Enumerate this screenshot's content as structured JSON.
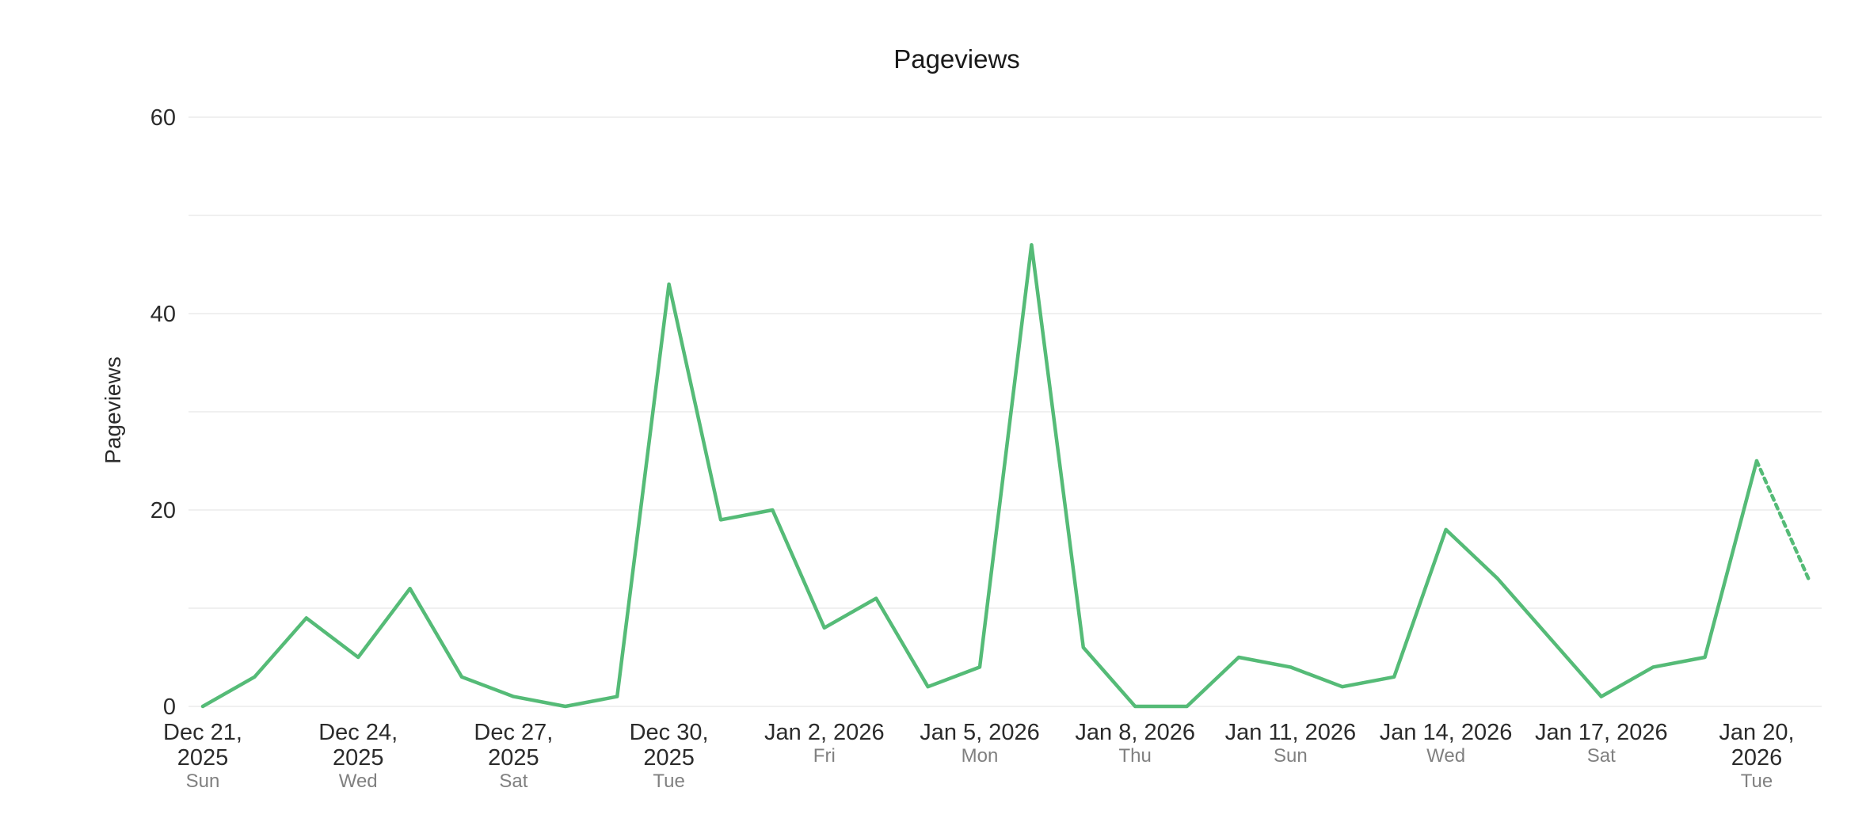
{
  "chart_data": {
    "type": "line",
    "title": "Pageviews",
    "ylabel": "Pageviews",
    "ylim": [
      0,
      60
    ],
    "yticks": [
      0,
      20,
      40,
      60
    ],
    "grid": true,
    "color": "#55bb77",
    "x": [
      "2025-12-21",
      "2025-12-22",
      "2025-12-23",
      "2025-12-24",
      "2025-12-25",
      "2025-12-26",
      "2025-12-27",
      "2025-12-28",
      "2025-12-29",
      "2025-12-30",
      "2025-12-31",
      "2026-01-01",
      "2026-01-02",
      "2026-01-03",
      "2026-01-04",
      "2026-01-05",
      "2026-01-06",
      "2026-01-07",
      "2026-01-08",
      "2026-01-09",
      "2026-01-10",
      "2026-01-11",
      "2026-01-12",
      "2026-01-13",
      "2026-01-14",
      "2026-01-15",
      "2026-01-16",
      "2026-01-17",
      "2026-01-18",
      "2026-01-19",
      "2026-01-20",
      "2026-01-21"
    ],
    "series": [
      {
        "values": [
          0,
          3,
          9,
          5,
          12,
          3,
          1,
          0,
          1,
          43,
          19,
          20,
          8,
          11,
          2,
          4,
          47,
          6,
          0,
          0,
          5,
          4,
          2,
          3,
          18,
          13,
          7,
          1,
          4,
          5,
          25,
          13
        ],
        "dashed_from_index": 30
      }
    ],
    "xtick_labels": [
      {
        "index": 0,
        "lines": [
          "Dec 21,",
          "2025"
        ],
        "sub": "Sun"
      },
      {
        "index": 3,
        "lines": [
          "Dec 24,",
          "2025"
        ],
        "sub": "Wed"
      },
      {
        "index": 6,
        "lines": [
          "Dec 27,",
          "2025"
        ],
        "sub": "Sat"
      },
      {
        "index": 9,
        "lines": [
          "Dec 30,",
          "2025"
        ],
        "sub": "Tue"
      },
      {
        "index": 12,
        "lines": [
          "Jan 2, 2026"
        ],
        "sub": "Fri"
      },
      {
        "index": 15,
        "lines": [
          "Jan 5, 2026"
        ],
        "sub": "Mon"
      },
      {
        "index": 18,
        "lines": [
          "Jan 8, 2026"
        ],
        "sub": "Thu"
      },
      {
        "index": 21,
        "lines": [
          "Jan 11, 2026"
        ],
        "sub": "Sun"
      },
      {
        "index": 24,
        "lines": [
          "Jan 14, 2026"
        ],
        "sub": "Wed"
      },
      {
        "index": 27,
        "lines": [
          "Jan 17, 2026"
        ],
        "sub": "Sat"
      },
      {
        "index": 30,
        "lines": [
          "Jan 20,",
          "2026"
        ],
        "sub": "Tue"
      }
    ]
  }
}
